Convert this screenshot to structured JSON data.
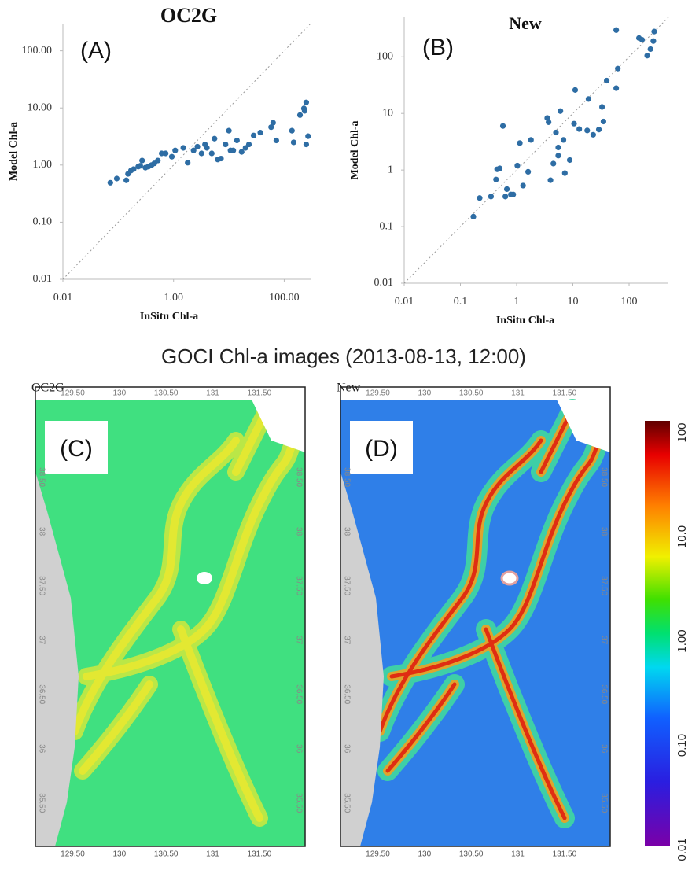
{
  "chart_data": [
    {
      "type": "scatter",
      "title": "OC2G",
      "panel_label": "(A)",
      "x_label": "InSitu Chl-a",
      "y_label": "Model Chl-a",
      "color": "#2e6da4",
      "log_x": true,
      "log_y": true,
      "identity_line": true,
      "xlim": [
        0.01,
        300
      ],
      "ylim": [
        0.01,
        300
      ],
      "xticks": [
        0.01,
        {
          "value": 1,
          "label": "1.00"
        },
        {
          "value": 100,
          "label": "100.00"
        }
      ],
      "yticks": [
        0.01,
        {
          "value": 0.1,
          "label": "0.10"
        },
        {
          "value": 1,
          "label": "1.00"
        },
        {
          "value": 10,
          "label": "10.00"
        },
        {
          "value": 100,
          "label": "100.00"
        }
      ],
      "x": [
        0.072,
        0.094,
        0.14,
        0.15,
        0.17,
        0.19,
        0.23,
        0.25,
        0.27,
        0.31,
        0.35,
        0.4,
        0.45,
        0.52,
        0.61,
        0.72,
        0.93,
        1.07,
        1.5,
        1.8,
        2.3,
        2.7,
        3.2,
        3.7,
        4.0,
        4.9,
        5.5,
        6.3,
        7.2,
        8.7,
        10,
        10.7,
        12,
        14,
        17,
        20,
        23,
        28,
        37,
        58,
        63,
        72,
        138,
        148,
        193,
        227,
        234,
        250,
        250,
        270
      ],
      "values": [
        0.49,
        0.58,
        0.54,
        0.7,
        0.8,
        0.85,
        0.94,
        0.97,
        1.2,
        0.9,
        0.94,
        1.0,
        1.07,
        1.2,
        1.6,
        1.6,
        1.4,
        1.8,
        2.0,
        1.1,
        1.8,
        2.1,
        1.6,
        2.3,
        2.0,
        1.6,
        2.9,
        1.25,
        1.3,
        2.3,
        4.0,
        1.8,
        1.8,
        2.7,
        1.7,
        2.0,
        2.3,
        3.3,
        3.7,
        4.6,
        5.5,
        2.7,
        4.0,
        2.5,
        7.5,
        9.8,
        8.9,
        12.5,
        2.3,
        3.2
      ]
    },
    {
      "type": "scatter",
      "title": "New",
      "panel_label": "(B)",
      "x_label": "InSitu Chl-a",
      "y_label": "Model Chl-a",
      "color": "#2e6da4",
      "log_x": true,
      "log_y": true,
      "identity_line": true,
      "xlim": [
        0.01,
        500
      ],
      "ylim": [
        0.01,
        500
      ],
      "xticks": [
        0.01,
        0.1,
        1,
        10,
        100
      ],
      "yticks": [
        0.01,
        0.1,
        1,
        10,
        100
      ],
      "x": [
        0.17,
        0.22,
        0.35,
        0.43,
        0.45,
        0.5,
        0.57,
        0.63,
        0.67,
        0.79,
        0.87,
        1.03,
        1.14,
        1.3,
        1.6,
        1.8,
        3.5,
        3.7,
        4.0,
        4.5,
        5.0,
        5.5,
        5.5,
        6.0,
        6.8,
        7.2,
        8.8,
        11,
        10.5,
        13,
        18,
        19,
        23,
        29,
        33,
        35,
        40,
        59,
        63,
        59,
        150,
        170,
        210,
        240,
        270,
        280
      ],
      "values": [
        0.15,
        0.32,
        0.34,
        0.68,
        1.03,
        1.07,
        6.0,
        0.34,
        0.46,
        0.37,
        0.37,
        1.2,
        3.0,
        0.53,
        0.93,
        3.4,
        8.3,
        7.0,
        0.66,
        1.3,
        4.6,
        1.8,
        2.5,
        11,
        3.4,
        0.88,
        1.5,
        26,
        6.6,
        5.3,
        5.0,
        18,
        4.2,
        5.2,
        13,
        7.2,
        38,
        28,
        62,
        297,
        215,
        200,
        105,
        137,
        190,
        280
      ]
    }
  ],
  "figure": {
    "title": "GOCI Chl-a images (2013-08-13, 12:00)",
    "maps": [
      {
        "name": "OC2G",
        "panel_label": "(C)"
      },
      {
        "name": "New",
        "panel_label": "(D)"
      }
    ],
    "map_axes": {
      "lonlim": [
        129.1,
        131.99
      ],
      "latlim": [
        35.1,
        39.33
      ],
      "lon_ticks": [
        {
          "value": 129.5,
          "label": "129.50"
        },
        130,
        {
          "value": 130.5,
          "label": "130.50"
        },
        131,
        {
          "value": 131.5,
          "label": "131.50"
        }
      ],
      "lat_ticks": [
        {
          "value": 38.5,
          "label": "38.50"
        },
        38,
        {
          "value": 37.5,
          "label": "37.50"
        },
        37,
        {
          "value": 36.5,
          "label": "36.50"
        },
        36,
        {
          "value": 35.5,
          "label": "35.50"
        }
      ]
    },
    "colorbar": {
      "log": true,
      "lim": [
        0.01,
        100
      ],
      "ticks": [
        {
          "value": 100,
          "label": "100"
        },
        {
          "value": 10,
          "label": "10.0"
        },
        {
          "value": 1,
          "label": "1.00"
        },
        {
          "value": 0.1,
          "label": "0.10"
        },
        0.01
      ]
    }
  }
}
